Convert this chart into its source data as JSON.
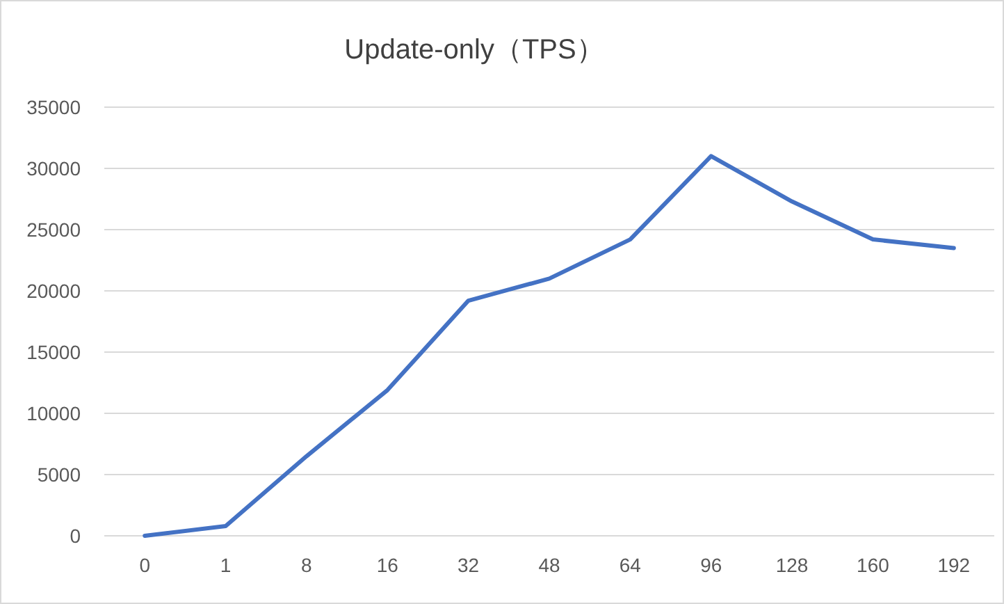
{
  "chart_data": {
    "type": "line",
    "title": "Update-only（TPS）",
    "categories": [
      "0",
      "1",
      "8",
      "16",
      "32",
      "48",
      "64",
      "96",
      "128",
      "160",
      "192"
    ],
    "series": [
      {
        "color": "#4472c4",
        "values": [
          0,
          800,
          6500,
          11900,
          19200,
          21000,
          24200,
          31000,
          27300,
          24200,
          23500
        ]
      }
    ],
    "ylim": [
      0,
      35000
    ],
    "yticks": [
      0,
      5000,
      10000,
      15000,
      20000,
      25000,
      30000,
      35000
    ],
    "grid": "y",
    "marker": "none",
    "line_style": "solid"
  }
}
